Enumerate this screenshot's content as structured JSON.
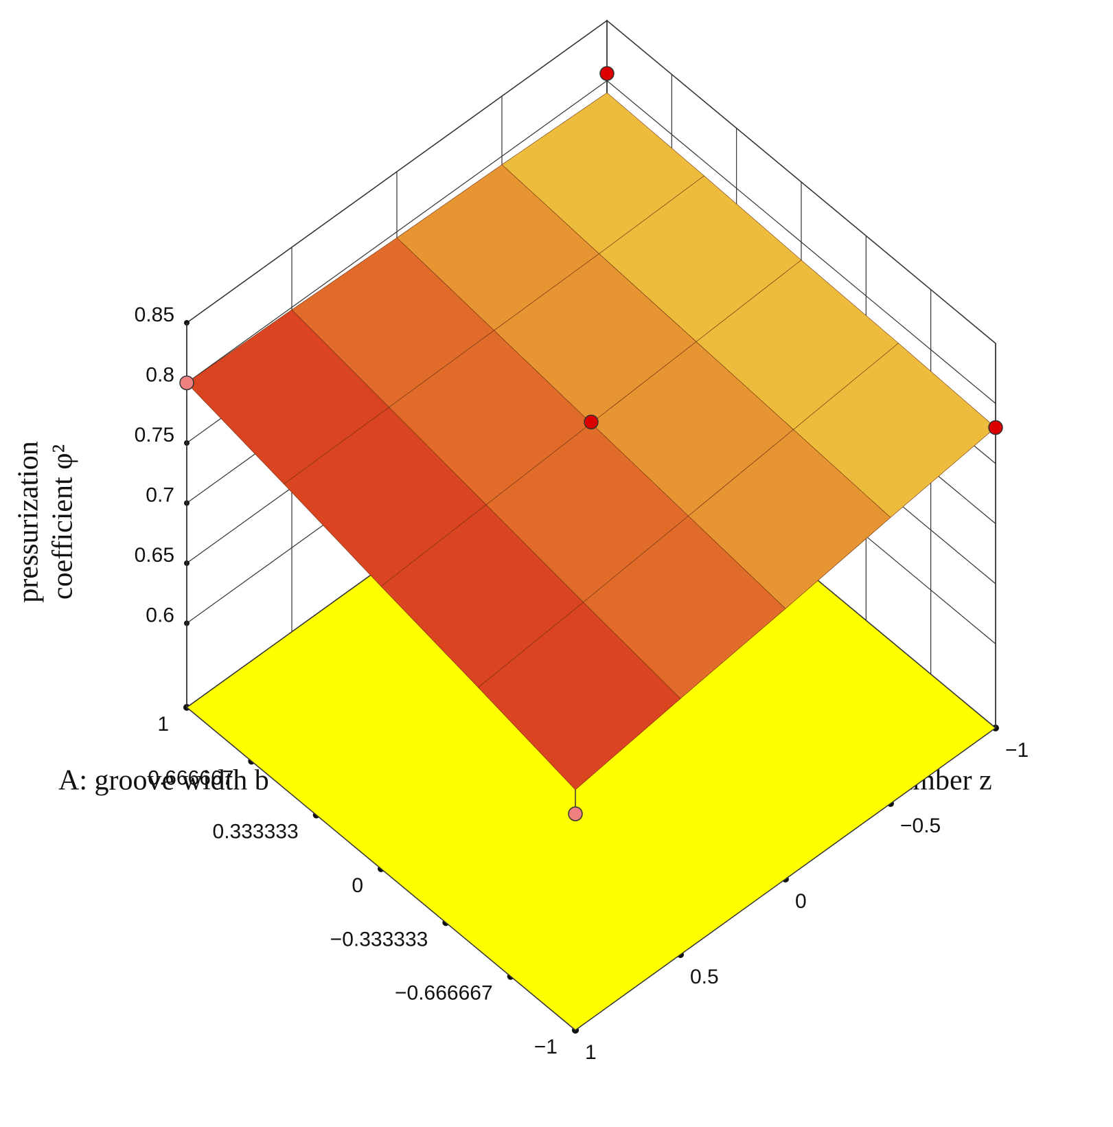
{
  "chart_data": {
    "type": "surface",
    "xlabel": "A: groove width b",
    "ylabel": "C: groove number z",
    "zlabel": [
      "pressurization",
      "coefficient φ²"
    ],
    "x": [
      -1,
      -0.5,
      0,
      0.5,
      1
    ],
    "y": [
      -1,
      -0.5,
      0,
      0.5,
      1
    ],
    "z": [
      [
        0.78,
        0.768,
        0.755,
        0.743,
        0.73
      ],
      [
        0.783,
        0.774,
        0.765,
        0.756,
        0.748
      ],
      [
        0.785,
        0.78,
        0.775,
        0.77,
        0.765
      ],
      [
        0.788,
        0.786,
        0.785,
        0.784,
        0.783
      ],
      [
        0.79,
        0.793,
        0.795,
        0.798,
        0.8
      ]
    ],
    "xlim": [
      -1,
      1
    ],
    "ylim": [
      -1,
      1
    ],
    "zlim": [
      0.53,
      0.85
    ],
    "xticks": [
      {
        "value": -1,
        "label": "−1"
      },
      {
        "value": -0.666667,
        "label": "−0.666667"
      },
      {
        "value": -0.333333,
        "label": "−0.333333"
      },
      0,
      0.333333,
      0.666667,
      1
    ],
    "yticks": [
      {
        "value": -1,
        "label": "−1"
      },
      {
        "value": -0.5,
        "label": "−0.5"
      },
      0,
      0.5,
      1
    ],
    "zticks": [
      0.6,
      0.65,
      0.7,
      0.75,
      0.8,
      0.85
    ],
    "surface_colors": [
      "#f0d040",
      "#d8301c"
    ],
    "floor_color": "#ffff00",
    "points": {
      "x": [
        1,
        1,
        -1,
        0,
        -1
      ],
      "y": [
        -1,
        1,
        -1,
        0,
        1
      ],
      "z": [
        0.806,
        0.8,
        0.78,
        0.776,
        0.71
      ],
      "colors": [
        "#dd0000",
        "#f08080",
        "#dd0000",
        "#dd0000",
        "#f08080"
      ]
    }
  }
}
